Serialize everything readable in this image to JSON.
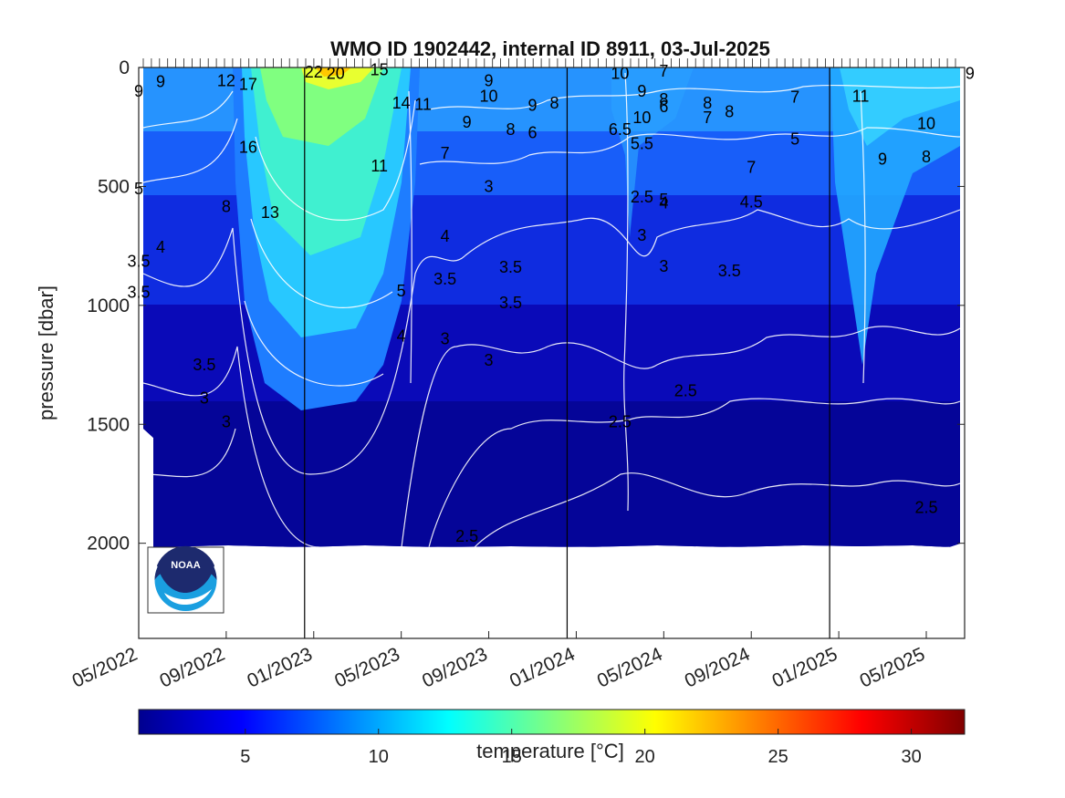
{
  "chart_data": {
    "type": "heatmap",
    "title": "WMO ID 1902442, internal ID 8911, 03-Jul-2025",
    "ylabel": "pressure [dbar]",
    "colorbar_label": "temperature [°C]",
    "ylim": [
      0,
      2400
    ],
    "y_reversed": true,
    "yticks": [
      0,
      500,
      1000,
      1500,
      2000
    ],
    "xticks": [
      "05/2022",
      "09/2022",
      "01/2023",
      "05/2023",
      "09/2023",
      "01/2024",
      "05/2024",
      "09/2024",
      "01/2025",
      "05/2025"
    ],
    "year_boundaries": [
      "01/2023",
      "01/2024",
      "01/2025"
    ],
    "colorbar_range": [
      1,
      32
    ],
    "colorbar_ticks": [
      5,
      10,
      15,
      20,
      25,
      30
    ],
    "colormap": "jet",
    "contour_labels": [
      {
        "label": "9",
        "date": "05/2022",
        "p": 100
      },
      {
        "label": "9",
        "date": "06/2022",
        "p": 60
      },
      {
        "label": "12",
        "date": "09/2022",
        "p": 55
      },
      {
        "label": "17",
        "date": "10/2022",
        "p": 70
      },
      {
        "label": "22",
        "date": "01/2023",
        "p": 20
      },
      {
        "label": "20",
        "date": "02/2023",
        "p": 25
      },
      {
        "label": "15",
        "date": "04/2023",
        "p": 10
      },
      {
        "label": "14",
        "date": "05/2023",
        "p": 150
      },
      {
        "label": "11",
        "date": "06/2023",
        "p": 155
      },
      {
        "label": "9",
        "date": "09/2023",
        "p": 55
      },
      {
        "label": "10",
        "date": "09/2023",
        "p": 120
      },
      {
        "label": "9",
        "date": "08/2023",
        "p": 230
      },
      {
        "label": "8",
        "date": "10/2023",
        "p": 260
      },
      {
        "label": "9",
        "date": "11/2023",
        "p": 160
      },
      {
        "label": "8",
        "date": "12/2023",
        "p": 150
      },
      {
        "label": "6",
        "date": "11/2023",
        "p": 275
      },
      {
        "label": "7",
        "date": "07/2023",
        "p": 360
      },
      {
        "label": "16",
        "date": "10/2022",
        "p": 335
      },
      {
        "label": "11",
        "date": "04/2023",
        "p": 415
      },
      {
        "label": "8",
        "date": "09/2022",
        "p": 585
      },
      {
        "label": "13",
        "date": "11/2022",
        "p": 610
      },
      {
        "label": "5",
        "date": "05/2022",
        "p": 510
      },
      {
        "label": "10",
        "date": "03/2024",
        "p": 25
      },
      {
        "label": "7",
        "date": "05/2024",
        "p": 15
      },
      {
        "label": "9",
        "date": "04/2024",
        "p": 100
      },
      {
        "label": "8",
        "date": "05/2024",
        "p": 135
      },
      {
        "label": "6",
        "date": "05/2024",
        "p": 165
      },
      {
        "label": "10",
        "date": "04/2024",
        "p": 210
      },
      {
        "label": "6.5",
        "date": "03/2024",
        "p": 260
      },
      {
        "label": "5.5",
        "date": "04/2024",
        "p": 320
      },
      {
        "label": "7",
        "date": "07/2024",
        "p": 210
      },
      {
        "label": "8",
        "date": "07/2024",
        "p": 150
      },
      {
        "label": "8",
        "date": "08/2024",
        "p": 185
      },
      {
        "label": "7",
        "date": "11/2024",
        "p": 125
      },
      {
        "label": "5",
        "date": "11/2024",
        "p": 300
      },
      {
        "label": "7",
        "date": "09/2024",
        "p": 420
      },
      {
        "label": "4.5",
        "date": "09/2024",
        "p": 565
      },
      {
        "label": "11",
        "date": "02/2025",
        "p": 120
      },
      {
        "label": "10",
        "date": "05/2025",
        "p": 235
      },
      {
        "label": "9",
        "date": "03/2025",
        "p": 385
      },
      {
        "label": "8",
        "date": "05/2025",
        "p": 375
      },
      {
        "label": "9",
        "date": "07/2025",
        "p": 25
      },
      {
        "label": "2.5",
        "date": "04/2024",
        "p": 545
      },
      {
        "label": "5",
        "date": "05/2024",
        "p": 555
      },
      {
        "label": "4",
        "date": "05/2024",
        "p": 570
      },
      {
        "label": "3",
        "date": "04/2024",
        "p": 705
      },
      {
        "label": "3",
        "date": "05/2024",
        "p": 835
      },
      {
        "label": "3.5",
        "date": "08/2024",
        "p": 855
      },
      {
        "label": "3",
        "date": "09/2023",
        "p": 500
      },
      {
        "label": "4",
        "date": "07/2023",
        "p": 710
      },
      {
        "label": "3.5",
        "date": "10/2023",
        "p": 840
      },
      {
        "label": "3.5",
        "date": "07/2023",
        "p": 890
      },
      {
        "label": "3.5",
        "date": "10/2023",
        "p": 990
      },
      {
        "label": "5",
        "date": "05/2023",
        "p": 940
      },
      {
        "label": "4",
        "date": "05/2023",
        "p": 1130
      },
      {
        "label": "3",
        "date": "07/2023",
        "p": 1140
      },
      {
        "label": "3",
        "date": "09/2023",
        "p": 1230
      },
      {
        "label": "3.5",
        "date": "05/2022",
        "p": 815
      },
      {
        "label": "4",
        "date": "06/2022",
        "p": 755
      },
      {
        "label": "3.5",
        "date": "05/2022",
        "p": 945
      },
      {
        "label": "3.5",
        "date": "08/2022",
        "p": 1250
      },
      {
        "label": "3",
        "date": "08/2022",
        "p": 1390
      },
      {
        "label": "3",
        "date": "09/2022",
        "p": 1490
      },
      {
        "label": "2.5",
        "date": "03/2024",
        "p": 1490
      },
      {
        "label": "2.5",
        "date": "06/2024",
        "p": 1360
      },
      {
        "label": "2.5",
        "date": "05/2025",
        "p": 1850
      },
      {
        "label": "2.5",
        "date": "08/2023",
        "p": 1970
      }
    ]
  }
}
